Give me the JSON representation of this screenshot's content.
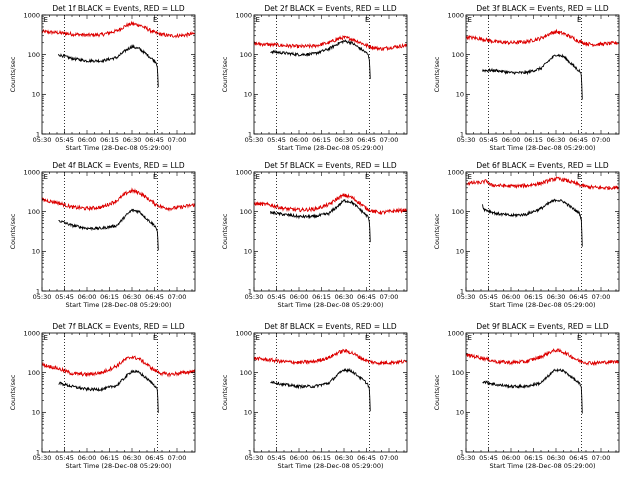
{
  "page": {
    "figure_name": "RHESSI detector count rates"
  },
  "colors": {
    "events": "#000000",
    "lld": "#dd0000",
    "frame": "#000000",
    "background": "#ffffff"
  },
  "common": {
    "ylabel": "Counts/sec",
    "xlabel": "Start Time (28-Dec-08 05:29:00)",
    "xticks": [
      "05:30",
      "05:45",
      "06:00",
      "06:15",
      "06:30",
      "06:45",
      "07:00"
    ],
    "xticks_values": [
      0,
      15,
      30,
      45,
      60,
      75,
      90
    ],
    "xlim": [
      0,
      102
    ],
    "yticks": [
      "1",
      "10",
      "100",
      "1000"
    ],
    "yticks_values": [
      1,
      10,
      100,
      1000
    ],
    "ylim": [
      1,
      1000
    ],
    "yscale": "log",
    "markers": [
      {
        "label": "E",
        "x": 1
      },
      {
        "label": "E",
        "x": 74
      }
    ],
    "dotted_lines_x": [
      15,
      77
    ]
  },
  "chart_data": [
    {
      "type": "line",
      "title": "Det 1f BLACK = Events, RED = LLD",
      "series": [
        {
          "name": "LLD",
          "x": [
            0,
            10,
            20,
            30,
            40,
            50,
            56,
            60,
            65,
            70,
            75,
            80,
            85,
            90,
            95,
            102
          ],
          "values": [
            380,
            360,
            330,
            310,
            320,
            400,
            540,
            600,
            560,
            450,
            360,
            320,
            300,
            300,
            310,
            340
          ]
        },
        {
          "name": "Events",
          "x": [
            11,
            20,
            30,
            40,
            50,
            56,
            60,
            65,
            70,
            75,
            76,
            77,
            77.5
          ],
          "values": [
            100,
            80,
            70,
            70,
            85,
            130,
            160,
            140,
            100,
            70,
            65,
            50,
            14
          ]
        }
      ]
    },
    {
      "type": "line",
      "title": "Det 2f BLACK = Events, RED = LLD",
      "series": [
        {
          "name": "LLD",
          "x": [
            0,
            10,
            20,
            30,
            40,
            50,
            56,
            60,
            65,
            70,
            75,
            80,
            85,
            90,
            95,
            102
          ],
          "values": [
            190,
            180,
            170,
            160,
            165,
            200,
            250,
            270,
            250,
            210,
            170,
            150,
            140,
            150,
            160,
            170
          ]
        },
        {
          "name": "Events",
          "x": [
            11,
            20,
            30,
            40,
            50,
            56,
            60,
            65,
            70,
            75,
            76,
            77,
            77.5
          ],
          "values": [
            120,
            110,
            100,
            105,
            140,
            190,
            220,
            200,
            150,
            110,
            100,
            75,
            25
          ]
        }
      ]
    },
    {
      "type": "line",
      "title": "Det 3f BLACK = Events, RED = LLD",
      "series": [
        {
          "name": "LLD",
          "x": [
            0,
            10,
            20,
            30,
            40,
            50,
            56,
            60,
            65,
            70,
            75,
            80,
            85,
            90,
            95,
            102
          ],
          "values": [
            280,
            250,
            210,
            200,
            210,
            260,
            340,
            380,
            340,
            280,
            220,
            190,
            180,
            185,
            190,
            200
          ]
        },
        {
          "name": "Events",
          "x": [
            11,
            20,
            30,
            40,
            50,
            56,
            60,
            65,
            70,
            75,
            76,
            77,
            77.5
          ],
          "values": [
            40,
            40,
            35,
            35,
            45,
            75,
            100,
            90,
            60,
            40,
            38,
            30,
            8
          ]
        }
      ]
    },
    {
      "type": "line",
      "title": "Det 4f BLACK = Events, RED = LLD",
      "series": [
        {
          "name": "LLD",
          "x": [
            0,
            10,
            20,
            30,
            40,
            50,
            56,
            60,
            65,
            70,
            75,
            80,
            85,
            90,
            95,
            102
          ],
          "values": [
            200,
            170,
            130,
            120,
            130,
            190,
            290,
            340,
            300,
            220,
            160,
            130,
            120,
            125,
            135,
            150
          ]
        },
        {
          "name": "Events",
          "x": [
            11,
            20,
            30,
            40,
            50,
            56,
            60,
            65,
            70,
            75,
            76,
            77,
            77.5
          ],
          "values": [
            60,
            45,
            38,
            38,
            45,
            80,
            110,
            100,
            65,
            45,
            40,
            30,
            10
          ]
        }
      ]
    },
    {
      "type": "line",
      "title": "Det 5f BLACK = Events, RED = LLD",
      "series": [
        {
          "name": "LLD",
          "x": [
            0,
            10,
            20,
            30,
            40,
            50,
            56,
            60,
            65,
            70,
            75,
            80,
            85,
            90,
            95,
            102
          ],
          "values": [
            160,
            150,
            120,
            110,
            115,
            150,
            220,
            260,
            230,
            170,
            120,
            100,
            95,
            100,
            105,
            110
          ]
        },
        {
          "name": "Events",
          "x": [
            11,
            20,
            30,
            40,
            50,
            56,
            60,
            65,
            70,
            75,
            76,
            77,
            77.5
          ],
          "values": [
            95,
            85,
            75,
            75,
            90,
            140,
            190,
            175,
            120,
            80,
            75,
            55,
            16
          ]
        }
      ]
    },
    {
      "type": "line",
      "title": "Det 6f BLACK = Events, RED = LLD",
      "series": [
        {
          "name": "LLD",
          "x": [
            0,
            10,
            14,
            16,
            20,
            30,
            40,
            50,
            56,
            60,
            65,
            70,
            75,
            80,
            85,
            90,
            95,
            102
          ],
          "values": [
            520,
            540,
            600,
            470,
            460,
            440,
            450,
            520,
            620,
            680,
            640,
            560,
            480,
            430,
            410,
            400,
            400,
            410
          ]
        },
        {
          "name": "Events",
          "x": [
            11,
            12,
            20,
            30,
            40,
            50,
            56,
            60,
            65,
            70,
            75,
            76,
            77,
            77.5
          ],
          "values": [
            150,
            115,
            90,
            80,
            85,
            120,
            170,
            200,
            180,
            130,
            95,
            85,
            60,
            14
          ]
        }
      ]
    },
    {
      "type": "line",
      "title": "Det 7f BLACK = Events, RED = LLD",
      "series": [
        {
          "name": "LLD",
          "x": [
            0,
            10,
            20,
            30,
            40,
            50,
            56,
            60,
            65,
            70,
            75,
            80,
            85,
            90,
            95,
            102
          ],
          "values": [
            160,
            130,
            95,
            90,
            100,
            150,
            220,
            250,
            220,
            160,
            115,
            95,
            90,
            95,
            100,
            110
          ]
        },
        {
          "name": "Events",
          "x": [
            11,
            20,
            30,
            40,
            50,
            56,
            60,
            65,
            70,
            75,
            76,
            77,
            77.5
          ],
          "values": [
            55,
            45,
            38,
            38,
            48,
            80,
            110,
            100,
            70,
            48,
            44,
            35,
            10
          ]
        }
      ]
    },
    {
      "type": "line",
      "title": "Det 8f BLACK = Events, RED = LLD",
      "series": [
        {
          "name": "LLD",
          "x": [
            0,
            10,
            20,
            30,
            40,
            50,
            56,
            60,
            65,
            70,
            75,
            80,
            85,
            90,
            95,
            102
          ],
          "values": [
            230,
            210,
            190,
            180,
            190,
            240,
            320,
            360,
            320,
            250,
            200,
            180,
            175,
            180,
            185,
            190
          ]
        },
        {
          "name": "Events",
          "x": [
            11,
            20,
            30,
            40,
            50,
            56,
            60,
            65,
            70,
            75,
            76,
            77,
            77.5
          ],
          "values": [
            60,
            50,
            45,
            45,
            55,
            90,
            120,
            110,
            80,
            55,
            50,
            38,
            10
          ]
        }
      ]
    },
    {
      "type": "line",
      "title": "Det 9f BLACK = Events, RED = LLD",
      "series": [
        {
          "name": "LLD",
          "x": [
            0,
            10,
            20,
            30,
            40,
            50,
            56,
            60,
            65,
            70,
            75,
            80,
            85,
            90,
            95,
            102
          ],
          "values": [
            280,
            240,
            190,
            180,
            190,
            250,
            330,
            370,
            330,
            260,
            200,
            180,
            175,
            180,
            185,
            190
          ]
        },
        {
          "name": "Events",
          "x": [
            11,
            20,
            30,
            40,
            50,
            56,
            60,
            65,
            70,
            75,
            76,
            77,
            77.5
          ],
          "values": [
            60,
            50,
            45,
            45,
            55,
            90,
            120,
            110,
            80,
            55,
            50,
            40,
            10
          ]
        }
      ]
    }
  ]
}
